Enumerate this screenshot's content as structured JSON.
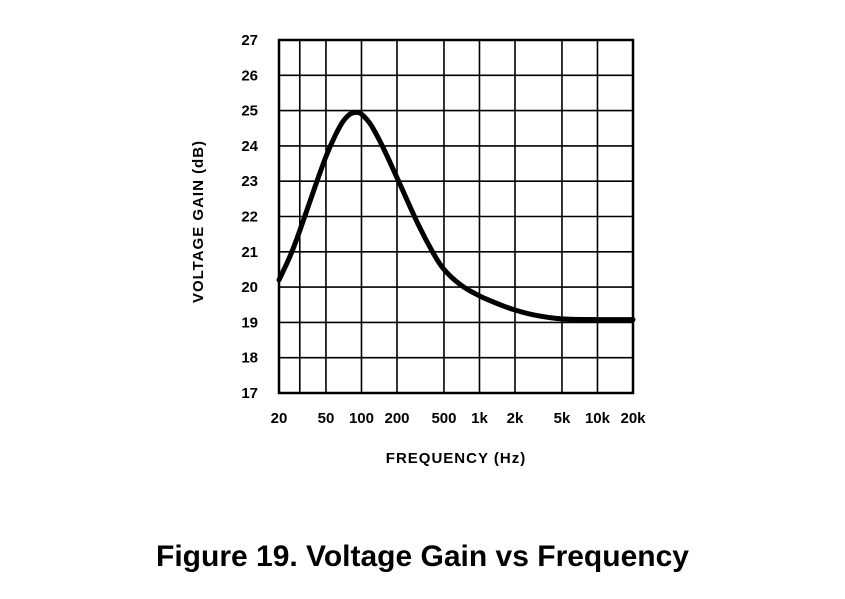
{
  "caption": "Figure 19. Voltage Gain vs Frequency",
  "chart_data": {
    "type": "line",
    "xlabel": "FREQUENCY (Hz)",
    "ylabel": "VOLTAGE GAIN (dB)",
    "xscale": "log",
    "xlim": [
      20,
      20000
    ],
    "ylim": [
      17,
      27
    ],
    "grid": true,
    "x_tick_labels": [
      "20",
      "50",
      "100",
      "200",
      "500",
      "1k",
      "2k",
      "5k",
      "10k",
      "20k"
    ],
    "y_tick_labels": [
      "17",
      "18",
      "19",
      "20",
      "21",
      "22",
      "23",
      "24",
      "25",
      "26",
      "27"
    ],
    "series": [
      {
        "x": [
          20,
          25,
          30,
          40,
          50,
          60,
          70,
          80,
          90,
          100,
          120,
          150,
          200,
          300,
          400,
          500,
          700,
          1000,
          1500,
          2000,
          3000,
          5000,
          10000,
          20000
        ],
        "y": [
          20.2,
          20.9,
          21.6,
          22.8,
          23.7,
          24.3,
          24.7,
          24.9,
          24.95,
          24.9,
          24.6,
          24.0,
          23.1,
          21.8,
          21.0,
          20.5,
          20.05,
          19.75,
          19.5,
          19.35,
          19.2,
          19.1,
          19.08,
          19.08
        ]
      }
    ],
    "line_color": "#000000"
  }
}
